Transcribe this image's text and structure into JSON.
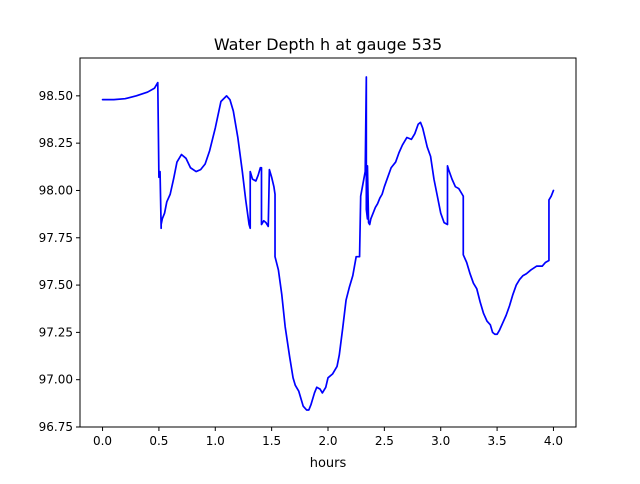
{
  "chart_data": {
    "type": "line",
    "title": "Water Depth h at gauge 535",
    "xlabel": "hours",
    "ylabel": "",
    "xlim": [
      -0.2,
      4.2
    ],
    "ylim": [
      96.75,
      98.7
    ],
    "x_ticks": [
      0.0,
      0.5,
      1.0,
      1.5,
      2.0,
      2.5,
      3.0,
      3.5,
      4.0
    ],
    "x_tick_labels": [
      "0.0",
      "0.5",
      "1.0",
      "1.5",
      "2.0",
      "2.5",
      "3.0",
      "3.5",
      "4.0"
    ],
    "y_ticks": [
      96.75,
      97.0,
      97.25,
      97.5,
      97.75,
      98.0,
      98.25,
      98.5
    ],
    "y_tick_labels": [
      "96.75",
      "97.00",
      "97.25",
      "97.50",
      "97.75",
      "98.00",
      "98.25",
      "98.50"
    ],
    "grid": false,
    "legend": false,
    "series": [
      {
        "color": "#0000ff",
        "x": [
          0.0,
          0.1,
          0.2,
          0.3,
          0.4,
          0.46,
          0.49,
          0.5,
          0.5,
          0.51,
          0.52,
          0.52,
          0.53,
          0.55,
          0.57,
          0.6,
          0.63,
          0.66,
          0.7,
          0.74,
          0.78,
          0.83,
          0.87,
          0.91,
          0.95,
          1.0,
          1.05,
          1.1,
          1.13,
          1.16,
          1.2,
          1.24,
          1.27,
          1.3,
          1.31,
          1.31,
          1.33,
          1.36,
          1.38,
          1.4,
          1.41,
          1.41,
          1.43,
          1.45,
          1.46,
          1.47,
          1.48,
          1.5,
          1.52,
          1.53,
          1.53,
          1.56,
          1.59,
          1.62,
          1.66,
          1.69,
          1.71,
          1.74,
          1.76,
          1.78,
          1.81,
          1.83,
          1.85,
          1.88,
          1.9,
          1.93,
          1.95,
          1.98,
          2.0,
          2.04,
          2.08,
          2.1,
          2.13,
          2.16,
          2.19,
          2.22,
          2.25,
          2.28,
          2.29,
          2.29,
          2.33,
          2.34,
          2.34,
          2.35,
          2.35,
          2.36,
          2.37,
          2.38,
          2.4,
          2.42,
          2.44,
          2.46,
          2.48,
          2.5,
          2.53,
          2.56,
          2.6,
          2.63,
          2.66,
          2.7,
          2.74,
          2.77,
          2.8,
          2.82,
          2.84,
          2.86,
          2.88,
          2.91,
          2.94,
          2.97,
          3.0,
          3.03,
          3.06,
          3.06,
          3.07,
          3.1,
          3.13,
          3.16,
          3.19,
          3.2,
          3.2,
          3.23,
          3.26,
          3.29,
          3.32,
          3.35,
          3.38,
          3.41,
          3.44,
          3.46,
          3.48,
          3.5,
          3.52,
          3.55,
          3.58,
          3.61,
          3.64,
          3.67,
          3.7,
          3.73,
          3.76,
          3.8,
          3.85,
          3.9,
          3.93,
          3.96,
          3.96,
          3.98,
          4.0
        ],
        "y": [
          98.48,
          98.48,
          98.485,
          98.5,
          98.52,
          98.54,
          98.57,
          98.07,
          98.1,
          98.1,
          97.8,
          97.82,
          97.85,
          97.88,
          97.94,
          97.98,
          98.06,
          98.15,
          98.19,
          98.17,
          98.12,
          98.1,
          98.11,
          98.14,
          98.21,
          98.33,
          98.47,
          98.5,
          98.48,
          98.42,
          98.28,
          98.1,
          97.95,
          97.82,
          97.8,
          98.1,
          98.06,
          98.05,
          98.08,
          98.12,
          98.12,
          97.82,
          97.84,
          97.83,
          97.82,
          97.81,
          98.11,
          98.07,
          98.02,
          97.98,
          97.65,
          97.58,
          97.45,
          97.28,
          97.12,
          97.01,
          96.97,
          96.94,
          96.9,
          96.86,
          96.84,
          96.84,
          96.87,
          96.93,
          96.96,
          96.95,
          96.93,
          96.96,
          97.01,
          97.03,
          97.07,
          97.13,
          97.27,
          97.42,
          97.49,
          97.55,
          97.65,
          97.65,
          97.97,
          97.97,
          98.1,
          98.6,
          97.9,
          97.85,
          98.13,
          97.83,
          97.82,
          97.85,
          97.88,
          97.91,
          97.93,
          97.96,
          97.98,
          98.02,
          98.07,
          98.12,
          98.15,
          98.2,
          98.24,
          98.28,
          98.27,
          98.3,
          98.35,
          98.36,
          98.33,
          98.28,
          98.23,
          98.18,
          98.06,
          97.97,
          97.88,
          97.83,
          97.82,
          98.13,
          98.11,
          98.06,
          98.02,
          98.01,
          97.98,
          97.97,
          97.66,
          97.62,
          97.56,
          97.51,
          97.48,
          97.41,
          97.35,
          97.31,
          97.29,
          97.25,
          97.24,
          97.24,
          97.26,
          97.3,
          97.34,
          97.39,
          97.45,
          97.5,
          97.53,
          97.55,
          97.56,
          97.58,
          97.6,
          97.6,
          97.62,
          97.63,
          97.95,
          97.97,
          98.0
        ]
      }
    ]
  }
}
